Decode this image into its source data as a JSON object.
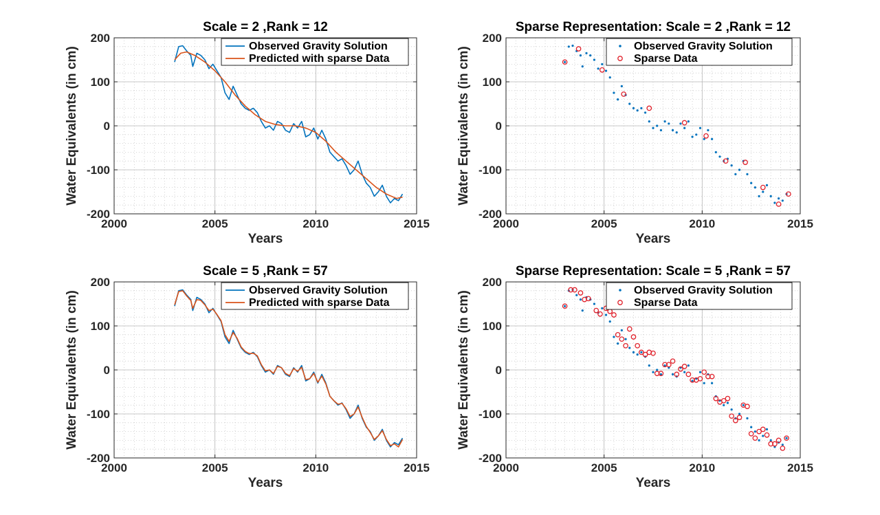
{
  "colors": {
    "observed": "#0072bd",
    "predicted": "#d95319",
    "sparse": "#e0202a",
    "grid": "#b8b8b8",
    "axis": "#262626"
  },
  "chart_data": [
    {
      "type": "line",
      "title": "Scale = 2 ,Rank = 12",
      "xlabel": "Years",
      "ylabel": "Water Equivalents (in cm)",
      "xlim": [
        2000,
        2015
      ],
      "ylim": [
        -200,
        200
      ],
      "xticks": [
        "2000",
        "2005",
        "2010",
        "2015"
      ],
      "yticks": [
        "200",
        "100",
        "0",
        "-100",
        "-200"
      ],
      "grid": "on",
      "legend_position": "top-right",
      "series": [
        {
          "name": "Observed Gravity Solution",
          "style": "line",
          "x": [
            2003.0,
            2003.2,
            2003.4,
            2003.6,
            2003.8,
            2003.9,
            2004.1,
            2004.3,
            2004.5,
            2004.7,
            2004.9,
            2005.1,
            2005.3,
            2005.5,
            2005.7,
            2005.9,
            2006.1,
            2006.3,
            2006.5,
            2006.7,
            2006.9,
            2007.1,
            2007.3,
            2007.5,
            2007.7,
            2007.9,
            2008.1,
            2008.3,
            2008.5,
            2008.7,
            2008.9,
            2009.1,
            2009.3,
            2009.5,
            2009.7,
            2009.9,
            2010.1,
            2010.3,
            2010.5,
            2010.7,
            2010.9,
            2011.1,
            2011.3,
            2011.5,
            2011.7,
            2011.9,
            2012.1,
            2012.3,
            2012.5,
            2012.7,
            2012.9,
            2013.1,
            2013.3,
            2013.5,
            2013.7,
            2013.9,
            2014.1,
            2014.3
          ],
          "y": [
            145,
            180,
            182,
            170,
            160,
            135,
            165,
            160,
            150,
            130,
            140,
            125,
            110,
            75,
            60,
            90,
            70,
            50,
            40,
            35,
            40,
            30,
            10,
            -5,
            0,
            -10,
            10,
            5,
            -10,
            -15,
            5,
            -5,
            10,
            -25,
            -20,
            -5,
            -30,
            -10,
            -30,
            -60,
            -70,
            -80,
            -75,
            -90,
            -110,
            -100,
            -80,
            -110,
            -130,
            -140,
            -160,
            -150,
            -135,
            -160,
            -175,
            -165,
            -170,
            -155
          ]
        },
        {
          "name": "Predicted with sparse Data",
          "style": "line",
          "x": [
            2003.0,
            2003.3,
            2003.6,
            2004.0,
            2004.5,
            2005.0,
            2005.5,
            2006.0,
            2006.5,
            2007.0,
            2007.5,
            2008.0,
            2008.5,
            2009.0,
            2009.5,
            2010.0,
            2010.5,
            2011.0,
            2011.5,
            2012.0,
            2012.5,
            2013.0,
            2013.5,
            2014.0,
            2014.3
          ],
          "y": [
            150,
            165,
            168,
            160,
            145,
            125,
            100,
            70,
            45,
            25,
            10,
            3,
            0,
            0,
            -5,
            -15,
            -35,
            -60,
            -80,
            -100,
            -120,
            -140,
            -155,
            -165,
            -162
          ]
        }
      ]
    },
    {
      "type": "scatter",
      "title": "Sparse Representation: Scale = 2 ,Rank = 12",
      "xlabel": "Years",
      "ylabel": "Water Equivalents (in cm)",
      "xlim": [
        2000,
        2015
      ],
      "ylim": [
        -200,
        200
      ],
      "xticks": [
        "2000",
        "2005",
        "2010",
        "2015"
      ],
      "yticks": [
        "200",
        "100",
        "0",
        "-100",
        "-200"
      ],
      "grid": "on",
      "legend_position": "top-right",
      "series": [
        {
          "name": "Observed Gravity Solution",
          "style": "dots",
          "x": [
            2003.0,
            2003.2,
            2003.4,
            2003.6,
            2003.8,
            2003.9,
            2004.1,
            2004.3,
            2004.5,
            2004.7,
            2004.9,
            2005.1,
            2005.3,
            2005.5,
            2005.7,
            2005.9,
            2006.1,
            2006.3,
            2006.5,
            2006.7,
            2006.9,
            2007.1,
            2007.3,
            2007.5,
            2007.7,
            2007.9,
            2008.1,
            2008.3,
            2008.5,
            2008.7,
            2008.9,
            2009.1,
            2009.3,
            2009.5,
            2009.7,
            2009.9,
            2010.1,
            2010.3,
            2010.5,
            2010.7,
            2010.9,
            2011.1,
            2011.3,
            2011.5,
            2011.7,
            2011.9,
            2012.1,
            2012.3,
            2012.5,
            2012.7,
            2012.9,
            2013.1,
            2013.3,
            2013.5,
            2013.7,
            2013.9,
            2014.1,
            2014.3
          ],
          "y": [
            145,
            180,
            182,
            170,
            160,
            135,
            165,
            160,
            150,
            130,
            140,
            125,
            110,
            75,
            60,
            90,
            70,
            50,
            40,
            35,
            40,
            30,
            10,
            -5,
            0,
            -10,
            10,
            5,
            -10,
            -15,
            5,
            -5,
            10,
            -25,
            -20,
            -5,
            -30,
            -10,
            -30,
            -60,
            -70,
            -80,
            -75,
            -90,
            -110,
            -100,
            -80,
            -110,
            -130,
            -140,
            -160,
            -150,
            -135,
            -160,
            -175,
            -165,
            -170,
            -155
          ]
        },
        {
          "name": "Sparse Data",
          "style": "circles",
          "x": [
            2003.0,
            2003.7,
            2004.9,
            2006.0,
            2007.3,
            2009.1,
            2010.2,
            2011.2,
            2012.2,
            2013.1,
            2013.9,
            2014.4
          ],
          "y": [
            145,
            175,
            127,
            72,
            40,
            7,
            -23,
            -80,
            -83,
            -140,
            -178,
            -155
          ]
        }
      ]
    },
    {
      "type": "line",
      "title": "Scale = 5 ,Rank = 57",
      "xlabel": "Years",
      "ylabel": "Water Equivalents (in cm)",
      "xlim": [
        2000,
        2015
      ],
      "ylim": [
        -200,
        200
      ],
      "xticks": [
        "2000",
        "2005",
        "2010",
        "2015"
      ],
      "yticks": [
        "200",
        "100",
        "0",
        "-100",
        "-200"
      ],
      "grid": "on",
      "legend_position": "top-right",
      "series": [
        {
          "name": "Observed Gravity Solution",
          "style": "line",
          "x": [
            2003.0,
            2003.2,
            2003.4,
            2003.6,
            2003.8,
            2003.9,
            2004.1,
            2004.3,
            2004.5,
            2004.7,
            2004.9,
            2005.1,
            2005.3,
            2005.5,
            2005.7,
            2005.9,
            2006.1,
            2006.3,
            2006.5,
            2006.7,
            2006.9,
            2007.1,
            2007.3,
            2007.5,
            2007.7,
            2007.9,
            2008.1,
            2008.3,
            2008.5,
            2008.7,
            2008.9,
            2009.1,
            2009.3,
            2009.5,
            2009.7,
            2009.9,
            2010.1,
            2010.3,
            2010.5,
            2010.7,
            2010.9,
            2011.1,
            2011.3,
            2011.5,
            2011.7,
            2011.9,
            2012.1,
            2012.3,
            2012.5,
            2012.7,
            2012.9,
            2013.1,
            2013.3,
            2013.5,
            2013.7,
            2013.9,
            2014.1,
            2014.3
          ],
          "y": [
            145,
            180,
            182,
            170,
            160,
            135,
            165,
            160,
            150,
            130,
            140,
            125,
            110,
            75,
            60,
            90,
            70,
            50,
            40,
            35,
            40,
            30,
            10,
            -5,
            0,
            -10,
            10,
            5,
            -10,
            -15,
            5,
            -5,
            10,
            -25,
            -20,
            -5,
            -30,
            -10,
            -30,
            -60,
            -70,
            -80,
            -75,
            -90,
            -110,
            -100,
            -80,
            -110,
            -130,
            -140,
            -160,
            -150,
            -135,
            -160,
            -175,
            -165,
            -170,
            -155
          ]
        },
        {
          "name": "Predicted with sparse Data",
          "style": "line",
          "x": [
            2003.0,
            2003.2,
            2003.4,
            2003.6,
            2003.8,
            2003.9,
            2004.1,
            2004.3,
            2004.5,
            2004.7,
            2004.9,
            2005.1,
            2005.3,
            2005.5,
            2005.7,
            2005.9,
            2006.1,
            2006.3,
            2006.5,
            2006.7,
            2006.9,
            2007.1,
            2007.3,
            2007.5,
            2007.7,
            2007.9,
            2008.1,
            2008.3,
            2008.5,
            2008.7,
            2008.9,
            2009.1,
            2009.3,
            2009.5,
            2009.7,
            2009.9,
            2010.1,
            2010.3,
            2010.5,
            2010.7,
            2010.9,
            2011.1,
            2011.3,
            2011.5,
            2011.7,
            2011.9,
            2012.1,
            2012.3,
            2012.5,
            2012.7,
            2012.9,
            2013.1,
            2013.3,
            2013.5,
            2013.7,
            2013.9,
            2014.1,
            2014.3
          ],
          "y": [
            148,
            178,
            180,
            168,
            158,
            140,
            160,
            158,
            148,
            135,
            138,
            126,
            112,
            80,
            65,
            85,
            72,
            52,
            42,
            37,
            38,
            32,
            12,
            -2,
            0,
            -8,
            8,
            5,
            -8,
            -13,
            3,
            -3,
            6,
            -22,
            -20,
            -8,
            -28,
            -14,
            -32,
            -60,
            -70,
            -78,
            -76,
            -88,
            -106,
            -100,
            -84,
            -108,
            -128,
            -142,
            -158,
            -150,
            -138,
            -158,
            -172,
            -168,
            -175,
            -158
          ]
        }
      ]
    },
    {
      "type": "scatter",
      "title": "Sparse Representation: Scale = 5 ,Rank = 57",
      "xlabel": "Years",
      "ylabel": "Water Equivalents (in cm)",
      "xlim": [
        2000,
        2015
      ],
      "ylim": [
        -200,
        200
      ],
      "xticks": [
        "2000",
        "2005",
        "2010",
        "2015"
      ],
      "yticks": [
        "200",
        "100",
        "0",
        "-100",
        "-200"
      ],
      "grid": "on",
      "legend_position": "top-right",
      "series": [
        {
          "name": "Observed Gravity Solution",
          "style": "dots",
          "x": [
            2003.0,
            2003.2,
            2003.4,
            2003.6,
            2003.8,
            2003.9,
            2004.1,
            2004.3,
            2004.5,
            2004.7,
            2004.9,
            2005.1,
            2005.3,
            2005.5,
            2005.7,
            2005.9,
            2006.1,
            2006.3,
            2006.5,
            2006.7,
            2006.9,
            2007.1,
            2007.3,
            2007.5,
            2007.7,
            2007.9,
            2008.1,
            2008.3,
            2008.5,
            2008.7,
            2008.9,
            2009.1,
            2009.3,
            2009.5,
            2009.7,
            2009.9,
            2010.1,
            2010.3,
            2010.5,
            2010.7,
            2010.9,
            2011.1,
            2011.3,
            2011.5,
            2011.7,
            2011.9,
            2012.1,
            2012.3,
            2012.5,
            2012.7,
            2012.9,
            2013.1,
            2013.3,
            2013.5,
            2013.7,
            2013.9,
            2014.1,
            2014.3
          ],
          "y": [
            145,
            180,
            182,
            170,
            160,
            135,
            165,
            160,
            150,
            130,
            140,
            125,
            110,
            75,
            60,
            90,
            70,
            50,
            40,
            35,
            40,
            30,
            10,
            -5,
            0,
            -10,
            10,
            5,
            -10,
            -15,
            5,
            -5,
            10,
            -25,
            -20,
            -5,
            -30,
            -10,
            -30,
            -60,
            -70,
            -80,
            -75,
            -90,
            -110,
            -100,
            -80,
            -110,
            -130,
            -140,
            -160,
            -150,
            -135,
            -160,
            -175,
            -165,
            -170,
            -155
          ]
        },
        {
          "name": "Sparse Data",
          "style": "circles",
          "x": [
            2003.0,
            2003.3,
            2003.5,
            2003.8,
            2004.0,
            2004.2,
            2004.6,
            2004.8,
            2005.1,
            2005.3,
            2005.5,
            2005.7,
            2005.9,
            2006.1,
            2006.3,
            2006.5,
            2006.7,
            2006.9,
            2007.1,
            2007.3,
            2007.5,
            2007.7,
            2007.9,
            2008.1,
            2008.3,
            2008.5,
            2008.7,
            2008.9,
            2009.1,
            2009.3,
            2009.5,
            2009.7,
            2009.9,
            2010.1,
            2010.3,
            2010.5,
            2010.7,
            2010.9,
            2011.1,
            2011.3,
            2011.5,
            2011.7,
            2011.9,
            2012.1,
            2012.3,
            2012.5,
            2012.7,
            2012.9,
            2013.1,
            2013.3,
            2013.5,
            2013.7,
            2013.9,
            2014.1,
            2014.3
          ],
          "y": [
            145,
            182,
            182,
            175,
            160,
            162,
            135,
            127,
            140,
            133,
            125,
            80,
            70,
            55,
            93,
            75,
            55,
            40,
            35,
            40,
            38,
            -8,
            -8,
            12,
            12,
            20,
            -10,
            2,
            8,
            -10,
            -23,
            -23,
            -20,
            -5,
            -15,
            -15,
            -65,
            -73,
            -70,
            -65,
            -105,
            -115,
            -108,
            -80,
            -83,
            -145,
            -155,
            -140,
            -135,
            -148,
            -168,
            -168,
            -160,
            -178,
            -155
          ]
        }
      ]
    }
  ]
}
